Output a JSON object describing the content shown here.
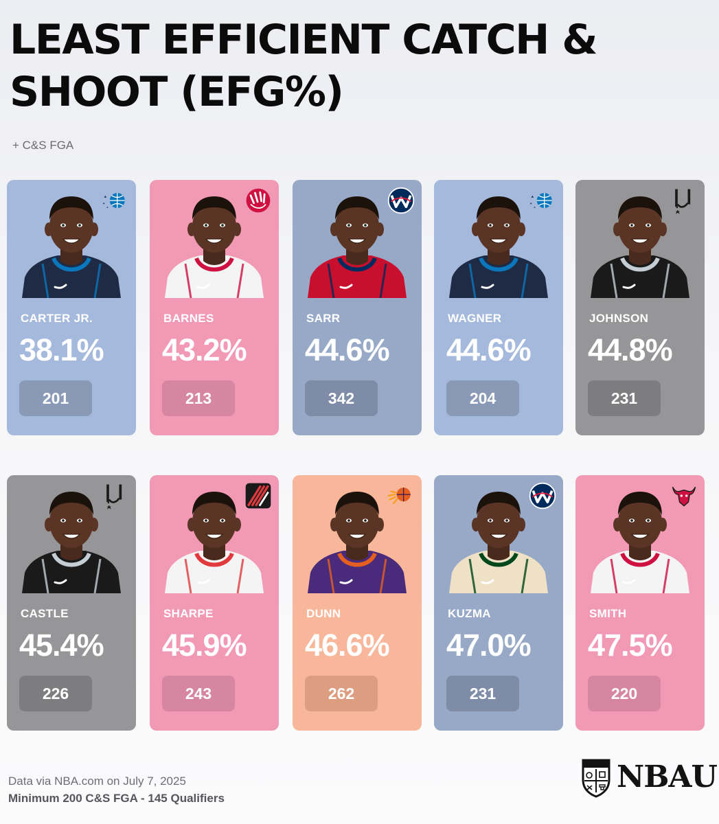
{
  "header": {
    "title": "LEAST EFFICIENT CATCH & SHOOT (EFG%)",
    "subtitle": "+ C&S FGA"
  },
  "players": [
    {
      "name": "CARTER JR.",
      "efg": "38.1%",
      "fga": "201",
      "team_logo_icon": "magic-logo-icon",
      "color": "#a4b9dc",
      "pill": "#8a9ab6",
      "jersey": "#1f2a44",
      "trim": "#0b77bd"
    },
    {
      "name": "BARNES",
      "efg": "43.2%",
      "fga": "213",
      "team_logo_icon": "raptors-logo-icon",
      "color": "#f29ab5",
      "pill": "#d686a0",
      "jersey": "#f4f4f4",
      "trim": "#ce1141"
    },
    {
      "name": "SARR",
      "efg": "44.6%",
      "fga": "342",
      "team_logo_icon": "wizards-logo-icon",
      "color": "#97a9c7",
      "pill": "#7e8ca7",
      "jersey": "#c8102e",
      "trim": "#002b5c"
    },
    {
      "name": "WAGNER",
      "efg": "44.6%",
      "fga": "204",
      "team_logo_icon": "magic-logo-icon",
      "color": "#a4b9dc",
      "pill": "#8a9ab6",
      "jersey": "#1f2a44",
      "trim": "#0b77bd"
    },
    {
      "name": "JOHNSON",
      "efg": "44.8%",
      "fga": "231",
      "team_logo_icon": "spurs-logo-icon",
      "color": "#969698",
      "pill": "#7d7d80",
      "jersey": "#1a1a1a",
      "trim": "#c4ced4"
    },
    {
      "name": "CASTLE",
      "efg": "45.4%",
      "fga": "226",
      "team_logo_icon": "spurs-logo-icon",
      "color": "#969698",
      "pill": "#7d7d80",
      "jersey": "#1a1a1a",
      "trim": "#c4ced4"
    },
    {
      "name": "SHARPE",
      "efg": "45.9%",
      "fga": "243",
      "team_logo_icon": "blazers-logo-icon",
      "color": "#f29ab5",
      "pill": "#d686a0",
      "jersey": "#f4f4f4",
      "trim": "#e03a3e"
    },
    {
      "name": "DUNN",
      "efg": "46.6%",
      "fga": "262",
      "team_logo_icon": "suns-logo-icon",
      "color": "#f8b79a",
      "pill": "#dc9d81",
      "jersey": "#4a2a7a",
      "trim": "#e56020"
    },
    {
      "name": "KUZMA",
      "efg": "47.0%",
      "fga": "231",
      "team_logo_icon": "wizards-logo-icon",
      "color": "#97a9c7",
      "pill": "#7e8ca7",
      "jersey": "#eee1c6",
      "trim": "#00471b"
    },
    {
      "name": "SMITH",
      "efg": "47.5%",
      "fga": "220",
      "team_logo_icon": "bulls-logo-icon",
      "color": "#f29ab5",
      "pill": "#d686a0",
      "jersey": "#f4f4f4",
      "trim": "#ce1141"
    }
  ],
  "footer": {
    "source": "Data via NBA.com on July 7, 2025",
    "criteria": "Minimum 200 C&S FGA - 145 Qualifiers"
  },
  "brand": {
    "name": "NBAU",
    "logo_icon": "nbau-shield-icon"
  }
}
